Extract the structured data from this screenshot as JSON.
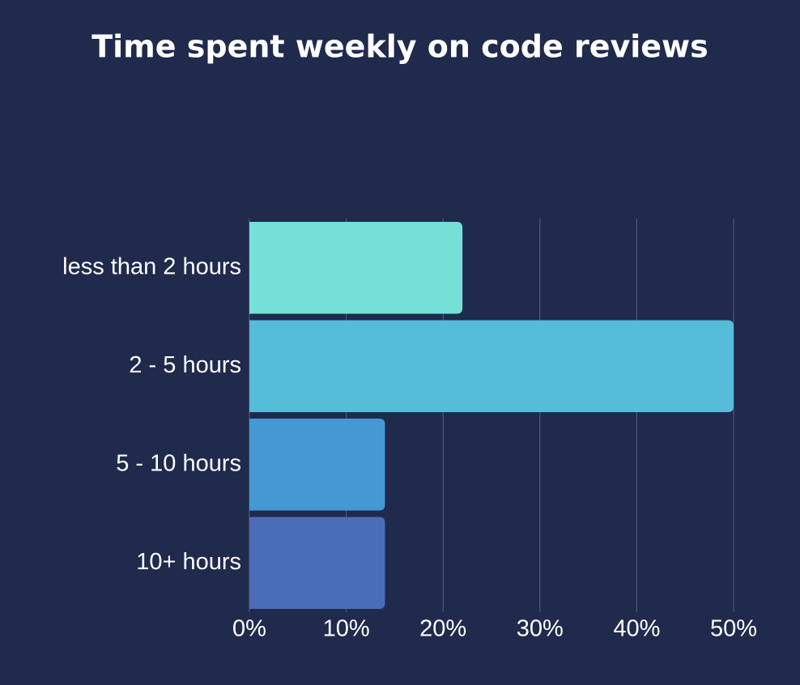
{
  "chart_data": {
    "type": "barh",
    "title": "Time spent weekly on code reviews",
    "categories": [
      "less than 2 hours",
      "2 - 5 hours",
      "5 - 10 hours",
      "10+ hours"
    ],
    "values": [
      22,
      50,
      14,
      14
    ],
    "colors": [
      "#74e0d6",
      "#55bcd9",
      "#4498d4",
      "#4a6db8"
    ],
    "xlim": [
      0,
      50
    ],
    "xticks": [
      {
        "value": 0,
        "label": "0%"
      },
      {
        "value": 10,
        "label": "10%"
      },
      {
        "value": 20,
        "label": "20%"
      },
      {
        "value": 30,
        "label": "30%"
      },
      {
        "value": 40,
        "label": "40%"
      },
      {
        "value": 50,
        "label": "50%"
      }
    ],
    "grid": true
  }
}
